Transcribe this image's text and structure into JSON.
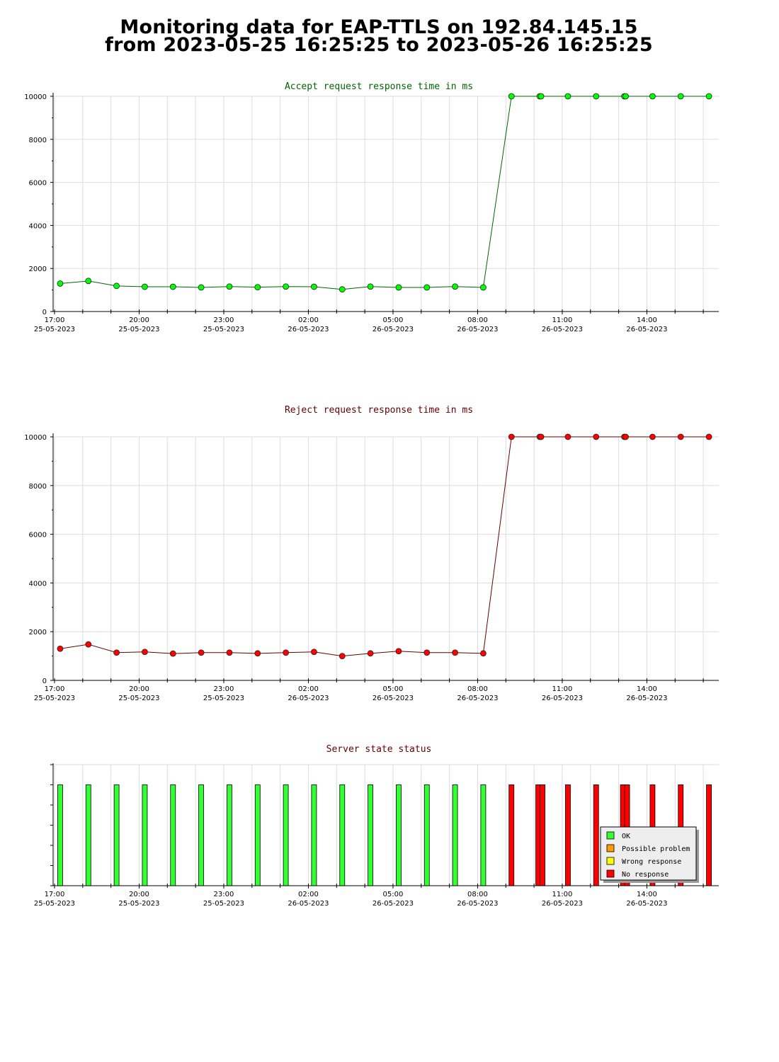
{
  "page": {
    "title_line1": "Monitoring data for EAP-TTLS on 192.84.145.15",
    "title_line2": "from 2023-05-25 16:25:25 to 2023-05-26 16:25:25"
  },
  "x_axis": {
    "ticks": [
      {
        "time": "17:00",
        "date": "25-05-2023",
        "hours": 0
      },
      {
        "time": "20:00",
        "date": "25-05-2023",
        "hours": 3
      },
      {
        "time": "23:00",
        "date": "25-05-2023",
        "hours": 6
      },
      {
        "time": "02:00",
        "date": "26-05-2023",
        "hours": 9
      },
      {
        "time": "05:00",
        "date": "26-05-2023",
        "hours": 12
      },
      {
        "time": "08:00",
        "date": "26-05-2023",
        "hours": 15
      },
      {
        "time": "11:00",
        "date": "26-05-2023",
        "hours": 18
      },
      {
        "time": "14:00",
        "date": "26-05-2023",
        "hours": 21
      }
    ],
    "range_hours": [
      -0.05,
      23.55
    ]
  },
  "chart_data": [
    {
      "type": "line",
      "title": "Accept request response time in ms",
      "title_color": "#006600",
      "line_color": "#006600",
      "marker_color": "#00ff00",
      "ylim": [
        0,
        10000
      ],
      "yticks": [
        0,
        2000,
        4000,
        6000,
        8000,
        10000
      ],
      "x_hours": [
        0.2,
        1.2,
        2.2,
        3.2,
        4.2,
        5.2,
        6.2,
        7.2,
        8.2,
        9.2,
        10.2,
        11.2,
        12.2,
        13.2,
        14.2,
        15.2,
        16.2,
        17.2,
        17.25,
        18.2,
        19.2,
        20.2,
        20.25,
        21.2,
        22.2,
        23.2
      ],
      "values": [
        1300,
        1420,
        1190,
        1150,
        1150,
        1120,
        1160,
        1130,
        1160,
        1150,
        1030,
        1160,
        1120,
        1120,
        1160,
        1120,
        10000,
        10000,
        10000,
        10000,
        10000,
        10000,
        10000,
        10000,
        10000,
        10000
      ]
    },
    {
      "type": "line",
      "title": "Reject request response time in ms",
      "title_color": "#660000",
      "line_color": "#660000",
      "marker_color": "#ff0000",
      "ylim": [
        0,
        10000
      ],
      "yticks": [
        0,
        2000,
        4000,
        6000,
        8000,
        10000
      ],
      "x_hours": [
        0.2,
        1.2,
        2.2,
        3.2,
        4.2,
        5.2,
        6.2,
        7.2,
        8.2,
        9.2,
        10.2,
        11.2,
        12.2,
        13.2,
        14.2,
        15.2,
        16.2,
        17.2,
        17.25,
        18.2,
        19.2,
        20.2,
        20.25,
        21.2,
        22.2,
        23.2
      ],
      "values": [
        1300,
        1480,
        1140,
        1170,
        1100,
        1140,
        1140,
        1110,
        1140,
        1170,
        1000,
        1110,
        1200,
        1140,
        1140,
        1110,
        10000,
        10000,
        10000,
        10000,
        10000,
        10000,
        10000,
        10000,
        10000,
        10000
      ]
    },
    {
      "type": "bar",
      "title": "Server state status",
      "title_color": "#660000",
      "x_hours": [
        0.2,
        1.2,
        2.2,
        3.2,
        4.2,
        5.2,
        6.2,
        7.2,
        8.2,
        9.2,
        10.2,
        11.2,
        12.2,
        13.2,
        14.2,
        15.2,
        16.2,
        17.15,
        17.3,
        18.2,
        19.2,
        20.15,
        20.3,
        21.2,
        22.2,
        23.2
      ],
      "states": [
        "ok",
        "ok",
        "ok",
        "ok",
        "ok",
        "ok",
        "ok",
        "ok",
        "ok",
        "ok",
        "ok",
        "ok",
        "ok",
        "ok",
        "ok",
        "ok",
        "no_response",
        "no_response",
        "no_response",
        "no_response",
        "no_response",
        "no_response",
        "no_response",
        "no_response",
        "no_response",
        "no_response"
      ],
      "level": 1,
      "legend": [
        {
          "key": "ok",
          "label": "OK",
          "color": "#33ff33"
        },
        {
          "key": "possible_problem",
          "label": "Possible problem",
          "color": "#ff9900"
        },
        {
          "key": "wrong_response",
          "label": "Wrong response",
          "color": "#ffff00"
        },
        {
          "key": "no_response",
          "label": "No response",
          "color": "#ff0000"
        }
      ]
    }
  ]
}
